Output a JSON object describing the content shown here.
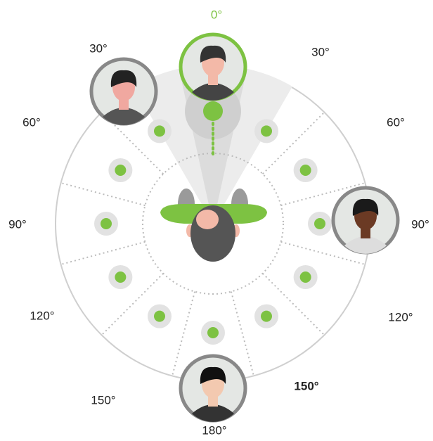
{
  "angle_labels": {
    "top": "0°",
    "left_30": "30°",
    "right_30": "30°",
    "left_60": "60°",
    "right_60": "60°",
    "left_90": "90°",
    "right_90": "90°",
    "left_120": "120°",
    "right_120": "120°",
    "left_150": "150°",
    "right_150": "150°",
    "bottom": "180°"
  }
}
